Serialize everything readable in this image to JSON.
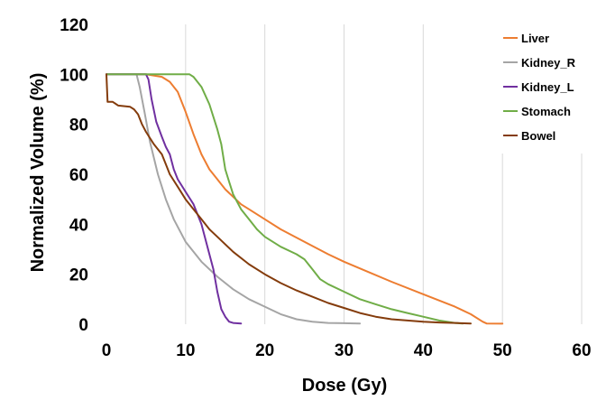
{
  "chart_data": {
    "type": "line",
    "title": "",
    "xlabel": "Dose (Gy)",
    "ylabel": "Normalized Volume (%)",
    "xlim": [
      0,
      60
    ],
    "ylim": [
      0,
      120
    ],
    "xticks": [
      0,
      10,
      20,
      30,
      40,
      50,
      60
    ],
    "yticks": [
      0,
      20,
      40,
      60,
      80,
      100,
      120
    ],
    "grid": "vertical",
    "legend_position": "top-right",
    "series": [
      {
        "name": "Liver",
        "color": "#ED7D31",
        "points": [
          [
            0,
            100
          ],
          [
            5,
            100
          ],
          [
            7,
            99
          ],
          [
            8,
            97
          ],
          [
            9,
            93
          ],
          [
            10,
            85
          ],
          [
            11,
            76
          ],
          [
            12,
            68
          ],
          [
            13,
            62
          ],
          [
            14,
            58
          ],
          [
            15,
            54
          ],
          [
            16,
            51
          ],
          [
            17,
            48
          ],
          [
            18,
            46
          ],
          [
            20,
            42
          ],
          [
            22,
            38
          ],
          [
            25,
            33
          ],
          [
            28,
            28
          ],
          [
            30,
            25
          ],
          [
            33,
            21
          ],
          [
            36,
            17
          ],
          [
            40,
            12
          ],
          [
            44,
            7
          ],
          [
            46,
            4
          ],
          [
            47.5,
            1
          ],
          [
            48,
            0.3
          ],
          [
            50,
            0.2
          ]
        ]
      },
      {
        "name": "Kidney_R",
        "color": "#A5A5A5",
        "points": [
          [
            0,
            100
          ],
          [
            3.8,
            100
          ],
          [
            4.2,
            95
          ],
          [
            4.8,
            85
          ],
          [
            5.5,
            73
          ],
          [
            6.5,
            60
          ],
          [
            7.5,
            50
          ],
          [
            8.5,
            42
          ],
          [
            10,
            33
          ],
          [
            12,
            25
          ],
          [
            14,
            19
          ],
          [
            16,
            14
          ],
          [
            18,
            10
          ],
          [
            20,
            7
          ],
          [
            22,
            4
          ],
          [
            24,
            2
          ],
          [
            26,
            1
          ],
          [
            28,
            0.5
          ],
          [
            32,
            0.3
          ]
        ]
      },
      {
        "name": "Kidney_L",
        "color": "#7030A0",
        "points": [
          [
            0,
            100
          ],
          [
            5,
            100
          ],
          [
            5.3,
            98
          ],
          [
            5.7,
            90
          ],
          [
            6.3,
            81
          ],
          [
            7,
            75
          ],
          [
            7.5,
            71
          ],
          [
            8,
            68
          ],
          [
            8.5,
            62
          ],
          [
            9,
            58
          ],
          [
            10,
            53
          ],
          [
            11,
            48
          ],
          [
            12,
            40
          ],
          [
            13,
            28
          ],
          [
            13.5,
            22
          ],
          [
            14,
            13
          ],
          [
            14.5,
            6
          ],
          [
            15,
            3
          ],
          [
            15.5,
            1
          ],
          [
            16,
            0.5
          ],
          [
            17,
            0.3
          ]
        ]
      },
      {
        "name": "Stomach",
        "color": "#70AD47",
        "points": [
          [
            0,
            100
          ],
          [
            10,
            100
          ],
          [
            10.5,
            100
          ],
          [
            11,
            99
          ],
          [
            12,
            95
          ],
          [
            13,
            88
          ],
          [
            14,
            78
          ],
          [
            14.5,
            72
          ],
          [
            15,
            62
          ],
          [
            15.5,
            57
          ],
          [
            16,
            52
          ],
          [
            17,
            46
          ],
          [
            18,
            42
          ],
          [
            19,
            38
          ],
          [
            20,
            35
          ],
          [
            22,
            31
          ],
          [
            24,
            28
          ],
          [
            25,
            26
          ],
          [
            26,
            22
          ],
          [
            27,
            18
          ],
          [
            28,
            16
          ],
          [
            30,
            13
          ],
          [
            32,
            10
          ],
          [
            34,
            8
          ],
          [
            36,
            6
          ],
          [
            38,
            4.5
          ],
          [
            40,
            3
          ],
          [
            42,
            1.5
          ],
          [
            44,
            0.5
          ],
          [
            45,
            0.3
          ]
        ]
      },
      {
        "name": "Bowel",
        "color": "#843C0C",
        "points": [
          [
            0,
            100
          ],
          [
            0.15,
            89
          ],
          [
            0.8,
            89
          ],
          [
            1.5,
            87.5
          ],
          [
            3,
            87
          ],
          [
            3.5,
            86
          ],
          [
            4,
            84
          ],
          [
            4.5,
            80
          ],
          [
            5,
            77
          ],
          [
            6,
            72
          ],
          [
            7,
            68
          ],
          [
            7.5,
            64
          ],
          [
            8,
            60
          ],
          [
            9,
            55
          ],
          [
            10,
            50
          ],
          [
            11,
            46
          ],
          [
            12,
            42
          ],
          [
            13,
            38
          ],
          [
            14,
            35
          ],
          [
            16,
            29
          ],
          [
            18,
            24
          ],
          [
            20,
            20
          ],
          [
            22,
            16.5
          ],
          [
            24,
            13.5
          ],
          [
            26,
            11
          ],
          [
            28,
            8.5
          ],
          [
            30,
            6.5
          ],
          [
            32,
            4.5
          ],
          [
            34,
            3
          ],
          [
            36,
            2
          ],
          [
            38,
            1.5
          ],
          [
            40,
            1
          ],
          [
            42,
            0.7
          ],
          [
            46,
            0.3
          ]
        ]
      }
    ]
  }
}
